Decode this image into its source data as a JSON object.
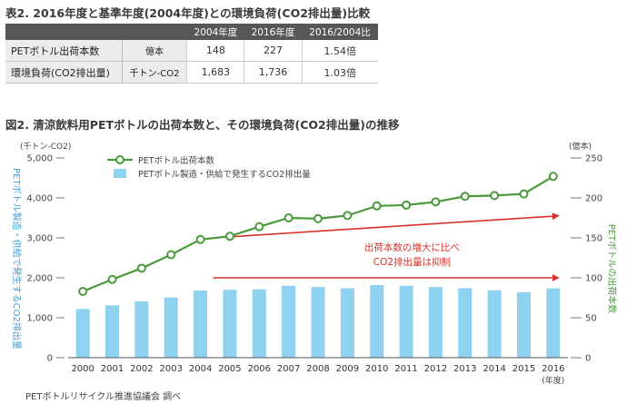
{
  "table": {
    "title": "表2. 2016年度と基準年度(2004年度)との環境負荷(CO2排出量)比較",
    "headers": [
      "2004年度",
      "2016年度",
      "2016/2004比"
    ],
    "rows": [
      {
        "label": "PETボトル出荷本数",
        "unit": "億本",
        "v2004": "148",
        "v2016": "227",
        "ratio": "1.54倍"
      },
      {
        "label": "環境負荷(CO2排出量)",
        "unit": "千トン-CO2",
        "v2004": "1,683",
        "v2016": "1,736",
        "ratio": "1.03倍"
      }
    ]
  },
  "figure_title": "図2. 清涼飲料用PETボトルの出荷本数と、その環境負荷(CO2排出量)の推移",
  "source": "PETボトルリサイクル推進協議会 調べ",
  "colors": {
    "bar": "#8fd2f0",
    "line": "#4a9a3c",
    "arrow": "#d8322a",
    "left_axis_text": "#3aa0d8",
    "right_axis_text": "#4a9a3c",
    "annotation": "#d8322a"
  },
  "chart_data": {
    "type": "bar+line",
    "categories": [
      "2000",
      "2001",
      "2002",
      "2003",
      "2004",
      "2005",
      "2006",
      "2007",
      "2008",
      "2009",
      "2010",
      "2011",
      "2012",
      "2013",
      "2014",
      "2015",
      "2016"
    ],
    "x_unit_label": "(年度)",
    "series": [
      {
        "name": "PETボトル製造・供給で発生するCO2排出量",
        "type": "bar",
        "axis": "left",
        "values": [
          1220,
          1310,
          1410,
          1510,
          1683,
          1700,
          1710,
          1800,
          1770,
          1740,
          1820,
          1800,
          1770,
          1740,
          1690,
          1640,
          1736
        ]
      },
      {
        "name": "PETボトル出荷本数",
        "type": "line",
        "axis": "right",
        "values": [
          83,
          98,
          112,
          129,
          148,
          152,
          164,
          175,
          174,
          178,
          190,
          191,
          195,
          202,
          203,
          205,
          227
        ]
      }
    ],
    "left_axis": {
      "unit": "(千トン-CO2)",
      "label": "PETボトル製造・供給で発生するCO2排出量",
      "ylim": [
        0,
        5000
      ],
      "ticks": [
        "0",
        "1,000",
        "2,000",
        "3,000",
        "4,000",
        "5,000"
      ],
      "tick_values": [
        0,
        1000,
        2000,
        3000,
        4000,
        5000
      ]
    },
    "right_axis": {
      "unit": "(億本)",
      "label": "PETボトルの出荷本数",
      "ylim": [
        0,
        250
      ],
      "ticks": [
        "0",
        "50",
        "100",
        "150",
        "200",
        "250"
      ],
      "tick_values": [
        0,
        50,
        100,
        150,
        200,
        250
      ]
    },
    "annotation": [
      "出荷本数の増大に比べ",
      "CO2排出量は抑制"
    ],
    "arrows": [
      {
        "from": [
          4,
          3000
        ],
        "to": [
          16,
          3550
        ]
      },
      {
        "from": [
          4,
          2000
        ],
        "to": [
          16,
          2000
        ]
      }
    ],
    "legend": {
      "placement": "top-left",
      "entries": [
        "PETボトル出荷本数",
        "PETボトル製造・供給で発生するCO2排出量"
      ]
    }
  }
}
